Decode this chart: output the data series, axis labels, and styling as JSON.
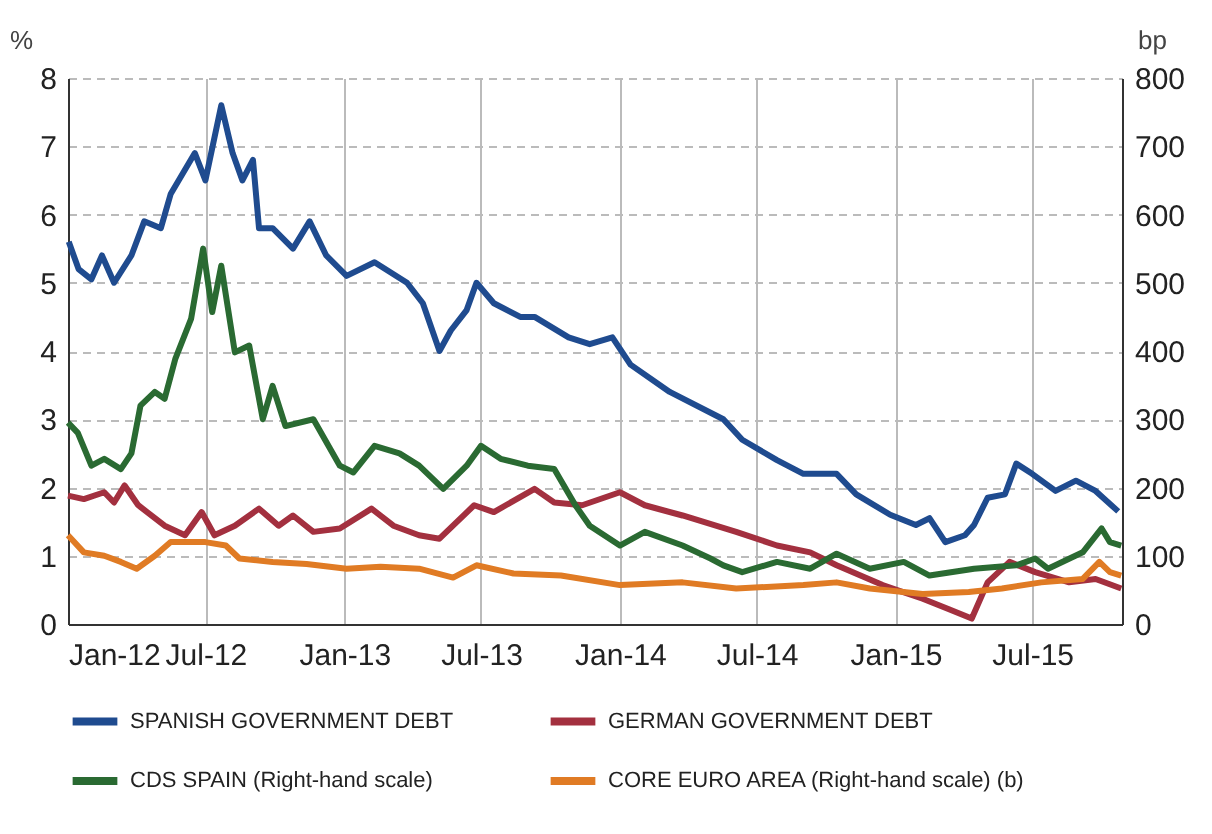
{
  "chart_data": {
    "type": "line",
    "ylabel": "%",
    "y2label": "bp",
    "xlim": [
      "2012-01-01",
      "2015-10-28"
    ],
    "xticks": [
      {
        "value": "2012-01-01",
        "label": "Jan-12"
      },
      {
        "value": "2012-07-01",
        "label": "Jul-12"
      },
      {
        "value": "2013-01-01",
        "label": "Jan-13"
      },
      {
        "value": "2013-07-01",
        "label": "Jul-13"
      },
      {
        "value": "2014-01-01",
        "label": "Jan-14"
      },
      {
        "value": "2014-07-01",
        "label": "Jul-14"
      },
      {
        "value": "2015-01-01",
        "label": "Jan-15"
      },
      {
        "value": "2015-07-01",
        "label": "Jul-15"
      }
    ],
    "ylim": [
      0,
      8
    ],
    "yticks": [
      0,
      1,
      2,
      3,
      4,
      5,
      6,
      7,
      8
    ],
    "y2lim": [
      0,
      800
    ],
    "y2ticks": [
      0,
      100,
      200,
      300,
      400,
      500,
      600,
      700,
      800
    ],
    "grid": true,
    "legend": "bottom",
    "marker": "none",
    "line_style": "solid",
    "series": [
      {
        "name": "SPANISH GOVERNMENT DEBT",
        "color": "#1f4b8f",
        "x": [
          "2012-01-02",
          "2012-01-15",
          "2012-02-01",
          "2012-02-15",
          "2012-03-02",
          "2012-03-25",
          "2012-04-11",
          "2012-05-03",
          "2012-05-16",
          "2012-06-17",
          "2012-07-01",
          "2012-07-22",
          "2012-08-06",
          "2012-08-19",
          "2012-09-02",
          "2012-09-10",
          "2012-09-28",
          "2012-10-25",
          "2012-11-16",
          "2012-12-08",
          "2013-01-04",
          "2013-02-10",
          "2013-03-25",
          "2013-04-15",
          "2013-05-07",
          "2013-05-22",
          "2013-06-12",
          "2013-06-25",
          "2013-07-18",
          "2013-08-22",
          "2013-09-10",
          "2013-10-25",
          "2013-11-22",
          "2013-12-22",
          "2014-01-15",
          "2014-03-08",
          "2014-05-18",
          "2014-06-12",
          "2014-07-28",
          "2014-09-01",
          "2014-10-15",
          "2014-11-10",
          "2014-12-25",
          "2015-01-28",
          "2015-02-15",
          "2015-03-08",
          "2015-04-03",
          "2015-04-15",
          "2015-05-03",
          "2015-05-26",
          "2015-06-10",
          "2015-07-01",
          "2015-08-01",
          "2015-08-28",
          "2015-09-23",
          "2015-10-23"
        ],
        "values": [
          5.6,
          5.2,
          5.05,
          5.4,
          5.0,
          5.4,
          5.9,
          5.8,
          6.3,
          6.9,
          6.5,
          7.6,
          6.9,
          6.5,
          6.8,
          5.8,
          5.8,
          5.5,
          5.9,
          5.4,
          5.1,
          5.3,
          5.0,
          4.7,
          4.0,
          4.3,
          4.6,
          5.0,
          4.7,
          4.5,
          4.5,
          4.2,
          4.1,
          4.2,
          3.8,
          3.4,
          3.0,
          2.7,
          2.4,
          2.2,
          2.2,
          1.9,
          1.6,
          1.45,
          1.55,
          1.2,
          1.3,
          1.45,
          1.85,
          1.9,
          2.35,
          2.2,
          1.95,
          2.1,
          1.95,
          1.65
        ]
      },
      {
        "name": "GERMAN GOVERNMENT DEBT",
        "color": "#a3303f",
        "x": [
          "2012-01-01",
          "2012-01-22",
          "2012-02-18",
          "2012-03-02",
          "2012-03-16",
          "2012-04-03",
          "2012-05-08",
          "2012-06-04",
          "2012-06-26",
          "2012-07-13",
          "2012-08-09",
          "2012-09-10",
          "2012-10-06",
          "2012-10-25",
          "2012-11-21",
          "2012-12-26",
          "2013-02-06",
          "2013-03-07",
          "2013-04-10",
          "2013-05-07",
          "2013-06-22",
          "2013-07-18",
          "2013-09-10",
          "2013-10-06",
          "2013-11-12",
          "2014-01-01",
          "2014-02-03",
          "2014-03-25",
          "2014-06-04",
          "2014-07-28",
          "2014-09-10",
          "2014-10-15",
          "2014-12-15",
          "2015-02-06",
          "2015-03-12",
          "2015-04-12",
          "2015-05-03",
          "2015-06-01",
          "2015-07-05",
          "2015-08-19",
          "2015-09-23",
          "2015-10-27"
        ],
        "values": [
          1.88,
          1.83,
          1.93,
          1.78,
          2.03,
          1.74,
          1.44,
          1.3,
          1.64,
          1.3,
          1.44,
          1.69,
          1.44,
          1.59,
          1.35,
          1.4,
          1.69,
          1.44,
          1.3,
          1.25,
          1.74,
          1.64,
          1.98,
          1.78,
          1.74,
          1.93,
          1.74,
          1.59,
          1.35,
          1.15,
          1.05,
          0.86,
          0.57,
          0.37,
          0.22,
          0.08,
          0.61,
          0.91,
          0.76,
          0.61,
          0.66,
          0.52
        ]
      },
      {
        "name": "CDS SPAIN (Right-hand scale)",
        "color": "#2a6a32",
        "axis": "y2",
        "x": [
          "2012-01-01",
          "2012-01-14",
          "2012-02-01",
          "2012-02-18",
          "2012-03-11",
          "2012-03-25",
          "2012-04-06",
          "2012-04-25",
          "2012-05-08",
          "2012-05-22",
          "2012-06-12",
          "2012-06-28",
          "2012-07-10",
          "2012-07-22",
          "2012-08-09",
          "2012-08-28",
          "2012-09-15",
          "2012-09-28",
          "2012-10-15",
          "2012-11-21",
          "2012-12-26",
          "2013-01-13",
          "2013-02-10",
          "2013-03-15",
          "2013-04-10",
          "2013-05-12",
          "2013-06-12",
          "2013-07-01",
          "2013-07-27",
          "2013-09-01",
          "2013-10-06",
          "2013-11-03",
          "2013-11-22",
          "2014-01-01",
          "2014-02-03",
          "2014-03-25",
          "2014-05-01",
          "2014-05-18",
          "2014-06-12",
          "2014-07-28",
          "2014-09-10",
          "2014-10-15",
          "2014-11-28",
          "2015-01-12",
          "2015-02-15",
          "2015-04-15",
          "2015-06-10",
          "2015-07-05",
          "2015-07-22",
          "2015-09-06",
          "2015-10-01",
          "2015-10-12",
          "2015-10-27"
        ],
        "values": [
          295,
          280,
          232,
          242,
          227,
          250,
          320,
          340,
          330,
          388,
          447,
          550,
          457,
          525,
          398,
          408,
          300,
          349,
          290,
          300,
          232,
          222,
          261,
          250,
          232,
          198,
          232,
          261,
          242,
          232,
          227,
          174,
          144,
          115,
          135,
          115,
          96,
          86,
          76,
          91,
          81,
          103,
          81,
          91,
          71,
          81,
          86,
          96,
          81,
          105,
          140,
          120,
          115
        ]
      },
      {
        "name": "CORE EURO AREA (Right-hand scale) (b)",
        "color": "#e07b24",
        "axis": "y2",
        "x": [
          "2012-01-01",
          "2012-01-22",
          "2012-02-18",
          "2012-03-11",
          "2012-04-01",
          "2012-04-25",
          "2012-05-16",
          "2012-07-01",
          "2012-07-28",
          "2012-08-15",
          "2012-09-28",
          "2012-11-12",
          "2013-01-04",
          "2013-02-18",
          "2013-04-10",
          "2013-05-25",
          "2013-06-25",
          "2013-08-13",
          "2013-10-15",
          "2014-01-01",
          "2014-03-25",
          "2014-06-04",
          "2014-09-01",
          "2014-10-15",
          "2014-11-28",
          "2015-02-06",
          "2015-04-08",
          "2015-05-22",
          "2015-07-13",
          "2015-09-06",
          "2015-09-28",
          "2015-10-12",
          "2015-10-27"
        ],
        "values": [
          130,
          105,
          100,
          91,
          81,
          100,
          120,
          120,
          115,
          96,
          91,
          88,
          81,
          84,
          81,
          68,
          86,
          74,
          71,
          57,
          61,
          52,
          57,
          61,
          52,
          44,
          47,
          52,
          61,
          66,
          91,
          76,
          71
        ]
      }
    ]
  }
}
